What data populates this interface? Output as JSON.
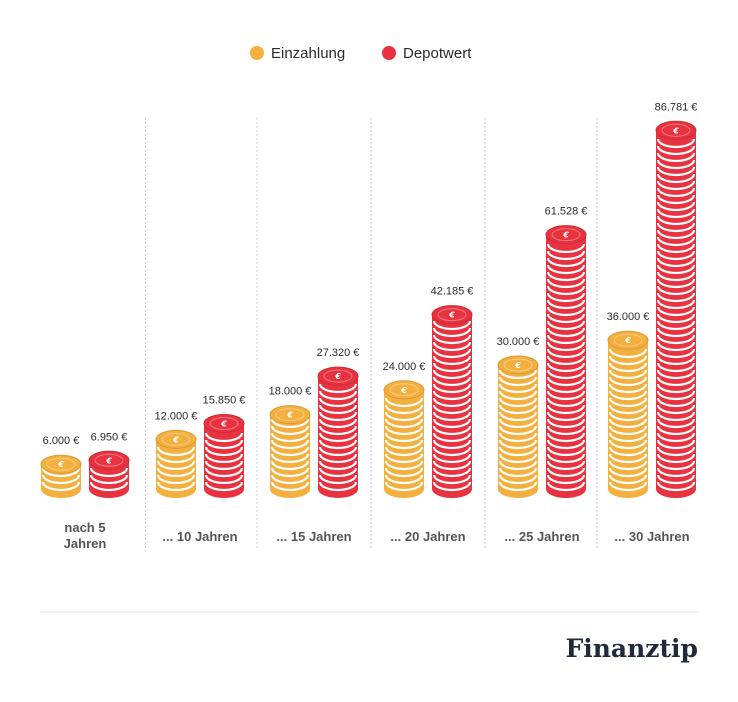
{
  "chart_data": {
    "type": "bar",
    "categories": [
      "nach 5 Jahren",
      "... 10 Jahren",
      "... 15 Jahren",
      "... 20 Jahren",
      "... 25 Jahren",
      "... 30 Jahren"
    ],
    "category_lines": [
      [
        "nach 5",
        "Jahren"
      ],
      [
        "... 10 Jahren"
      ],
      [
        "... 15 Jahren"
      ],
      [
        "... 20 Jahren"
      ],
      [
        "... 25 Jahren"
      ],
      [
        "... 30 Jahren"
      ]
    ],
    "series": [
      {
        "name": "Einzahlung",
        "color": "#f4b03e",
        "values": [
          6000,
          12000,
          18000,
          24000,
          30000,
          36000
        ],
        "labels": [
          "6.000 €",
          "12.000 €",
          "18.000 €",
          "24.000 €",
          "30.000 €",
          "36.000 €"
        ]
      },
      {
        "name": "Depotwert",
        "color": "#e8323f",
        "values": [
          6950,
          15850,
          27320,
          42185,
          61528,
          86781
        ],
        "labels": [
          "6.950 €",
          "15.850 €",
          "27.320 €",
          "42.185 €",
          "61.528 €",
          "86.781 €"
        ]
      }
    ],
    "bar_style": "coin stacks",
    "coin_symbol": "€",
    "legend_position": "top-center",
    "grid": false,
    "category_separators": "dotted vertical",
    "ylim": [
      0,
      90000
    ]
  },
  "brand": "Finanztip"
}
